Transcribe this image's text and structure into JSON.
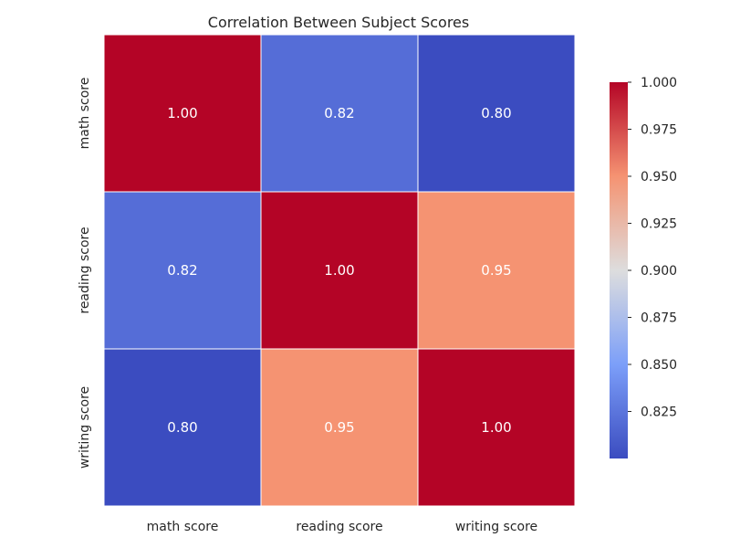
{
  "chart_data": {
    "type": "heatmap",
    "title": "Correlation Between Subject Scores",
    "xlabel": "",
    "ylabel": "",
    "x_categories": [
      "math score",
      "reading score",
      "writing score"
    ],
    "y_categories": [
      "math score",
      "reading score",
      "writing score"
    ],
    "values": [
      [
        1.0,
        0.82,
        0.8
      ],
      [
        0.82,
        1.0,
        0.95
      ],
      [
        0.8,
        0.95,
        1.0
      ]
    ],
    "cell_labels": [
      [
        "1.00",
        "0.82",
        "0.80"
      ],
      [
        "0.82",
        "1.00",
        "0.95"
      ],
      [
        "0.80",
        "0.95",
        "1.00"
      ]
    ],
    "colormap": "coolwarm",
    "colorbar": {
      "min": 0.8,
      "max": 1.0,
      "ticks": [
        0.825,
        0.85,
        0.875,
        0.9,
        0.925,
        0.95,
        0.975,
        1.0
      ],
      "tick_labels": [
        "0.825",
        "0.850",
        "0.875",
        "0.900",
        "0.925",
        "0.950",
        "0.975",
        "1.000"
      ],
      "placement": "right"
    },
    "colors": {
      "cell_border": "#ffffff",
      "annotation_text": "#ffffff",
      "axis_text": "#262626"
    },
    "grid": false,
    "legend": "none"
  }
}
